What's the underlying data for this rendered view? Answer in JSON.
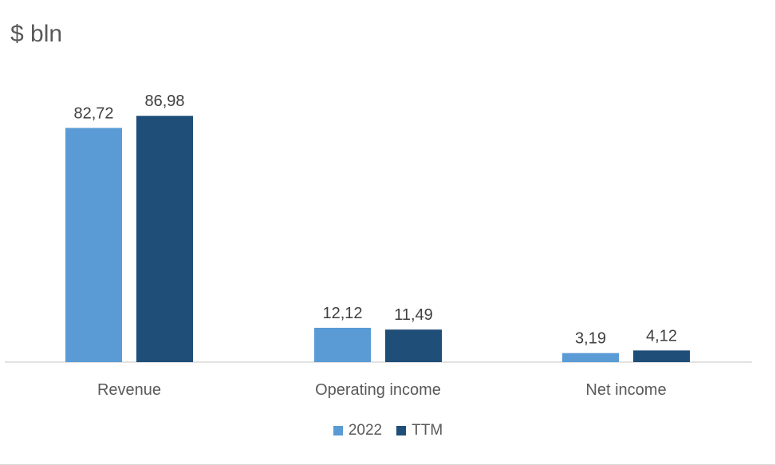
{
  "chart_data": {
    "type": "bar",
    "title": "$ bln",
    "xlabel": "",
    "ylabel": "",
    "categories": [
      "Revenue",
      "Operating income",
      "Net income"
    ],
    "series": [
      {
        "name": "2022",
        "values": [
          82.72,
          12.12,
          3.19
        ],
        "labels": [
          "82,72",
          "12,12",
          "3,19"
        ],
        "color": "#5b9bd5"
      },
      {
        "name": "TTM",
        "values": [
          86.98,
          11.49,
          4.12
        ],
        "labels": [
          "86,98",
          "11,49",
          "4,12"
        ],
        "color": "#1f4e79"
      }
    ],
    "ylim": [
      0,
      100
    ],
    "grid": false,
    "legend_position": "bottom",
    "axis_color": "#d9d9d9",
    "text_color": "#595959"
  }
}
